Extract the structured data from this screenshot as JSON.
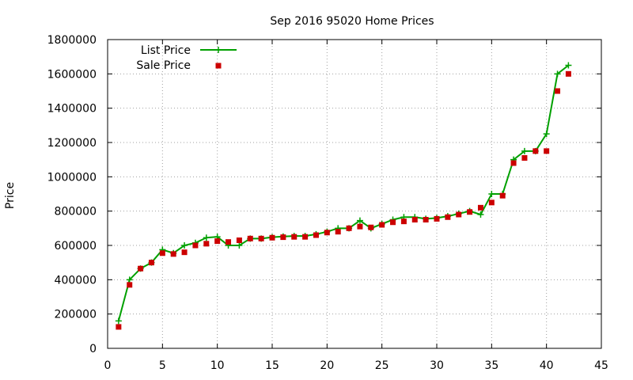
{
  "chart_data": {
    "type": "line",
    "title": "Sep 2016 95020 Home Prices",
    "xlabel": "",
    "ylabel": "Price",
    "xlim": [
      0,
      45
    ],
    "ylim": [
      0,
      1800000
    ],
    "x_ticks": [
      0,
      5,
      10,
      15,
      20,
      25,
      30,
      35,
      40,
      45
    ],
    "y_ticks": [
      0,
      200000,
      400000,
      600000,
      800000,
      1000000,
      1200000,
      1400000,
      1600000,
      1800000
    ],
    "grid": true,
    "legend_position": "top-left",
    "series": [
      {
        "name": "List Price",
        "style": "line-plus",
        "color": "#00a000",
        "x": [
          1,
          2,
          3,
          4,
          5,
          6,
          7,
          8,
          9,
          10,
          11,
          12,
          13,
          14,
          15,
          16,
          17,
          18,
          19,
          20,
          21,
          22,
          23,
          24,
          25,
          26,
          27,
          28,
          29,
          30,
          31,
          32,
          33,
          34,
          35,
          36,
          37,
          38,
          39,
          40,
          41,
          42
        ],
        "y": [
          160000,
          400000,
          465000,
          500000,
          575000,
          555000,
          600000,
          615000,
          645000,
          650000,
          600000,
          600000,
          640000,
          640000,
          648000,
          652000,
          655000,
          655000,
          665000,
          680000,
          700000,
          700000,
          745000,
          700000,
          725000,
          750000,
          765000,
          765000,
          755000,
          760000,
          770000,
          785000,
          800000,
          780000,
          900000,
          900000,
          1100000,
          1150000,
          1150000,
          1250000,
          1600000,
          1650000
        ]
      },
      {
        "name": "Sale Price",
        "style": "square",
        "color": "#cc0000",
        "x": [
          1,
          2,
          3,
          4,
          5,
          6,
          7,
          8,
          9,
          10,
          11,
          12,
          13,
          14,
          15,
          16,
          17,
          18,
          19,
          20,
          21,
          22,
          23,
          24,
          25,
          26,
          27,
          28,
          29,
          30,
          31,
          32,
          33,
          34,
          35,
          36,
          37,
          38,
          39,
          40,
          41,
          42
        ],
        "y": [
          125000,
          370000,
          465000,
          500000,
          555000,
          550000,
          560000,
          600000,
          610000,
          625000,
          620000,
          630000,
          640000,
          640000,
          645000,
          648000,
          650000,
          650000,
          660000,
          675000,
          680000,
          700000,
          710000,
          705000,
          720000,
          735000,
          740000,
          750000,
          750000,
          755000,
          765000,
          780000,
          795000,
          820000,
          850000,
          890000,
          1080000,
          1110000,
          1150000,
          1150000,
          1500000,
          1600000
        ]
      }
    ]
  }
}
